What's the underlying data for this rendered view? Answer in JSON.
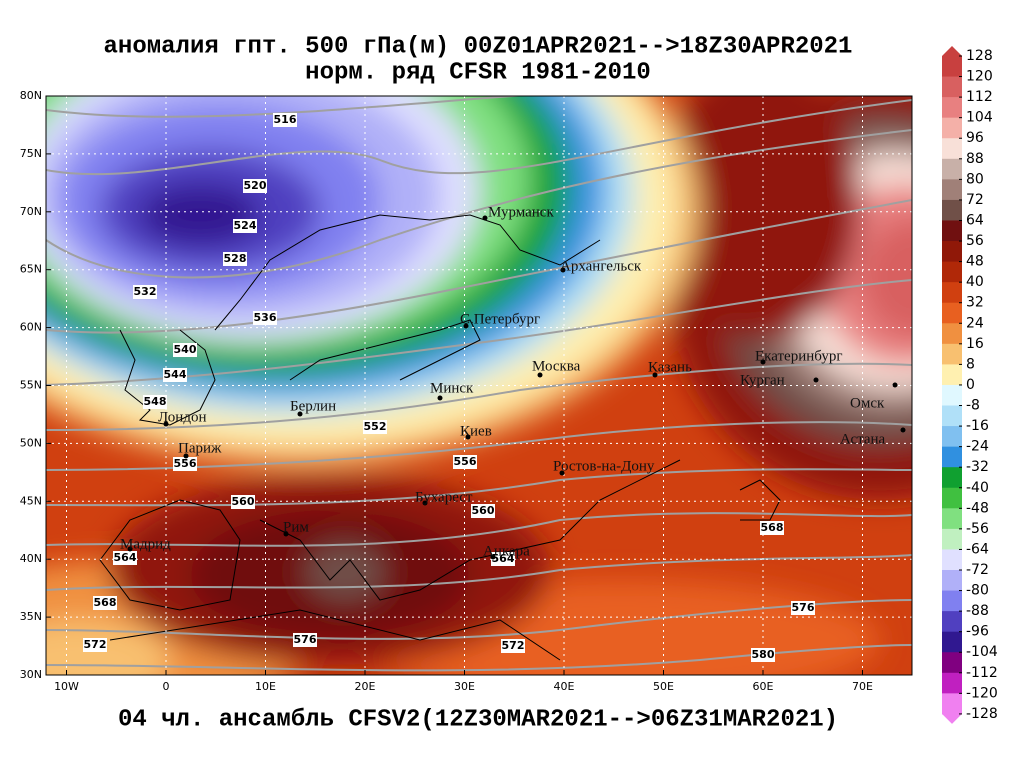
{
  "title": {
    "line1": "аномалия гпт. 500 гПа(м) 00Z01APR2021-->18Z30APR2021",
    "line2": "норм. ряд CFSR 1981-2010"
  },
  "footer": "04 чл. ансамбль CFSV2(12Z30MAR2021-->06Z31MAR2021)",
  "axes": {
    "lat": [
      {
        "value": 80,
        "label": "80N"
      },
      {
        "value": 75,
        "label": "75N"
      },
      {
        "value": 70,
        "label": "70N"
      },
      {
        "value": 65,
        "label": "65N"
      },
      {
        "value": 60,
        "label": "60N"
      },
      {
        "value": 55,
        "label": "55N"
      },
      {
        "value": 50,
        "label": "50N"
      },
      {
        "value": 45,
        "label": "45N"
      },
      {
        "value": 40,
        "label": "40N"
      },
      {
        "value": 35,
        "label": "35N"
      },
      {
        "value": 30,
        "label": "30N"
      }
    ],
    "lon": [
      {
        "value": -10,
        "label": "10W"
      },
      0,
      {
        "value": 10,
        "label": "10E"
      },
      {
        "value": 20,
        "label": "20E"
      },
      {
        "value": 30,
        "label": "30E"
      },
      {
        "value": 40,
        "label": "40E"
      },
      {
        "value": 50,
        "label": "50E"
      },
      {
        "value": 60,
        "label": "60E"
      },
      {
        "value": 70,
        "label": "70E"
      }
    ]
  },
  "colorbar": {
    "levels": [
      128,
      120,
      112,
      104,
      96,
      88,
      80,
      72,
      64,
      56,
      48,
      40,
      32,
      24,
      16,
      8,
      0,
      -8,
      -16,
      -24,
      -32,
      -40,
      -48,
      -56,
      -64,
      -72,
      -80,
      -88,
      -96,
      -104,
      -112,
      -120,
      -128
    ],
    "colors": [
      "#c8403f",
      "#d86060",
      "#e88080",
      "#f4b0a8",
      "#f8e0d8",
      "#c8b0a8",
      "#a08078",
      "#705048",
      "#701010",
      "#901808",
      "#b02808",
      "#d04010",
      "#e86020",
      "#f09040",
      "#f8c070",
      "#fff0b0",
      "#e0f8ff",
      "#b0e0f8",
      "#80c0f0",
      "#3090e0",
      "#10a030",
      "#40c040",
      "#80e080",
      "#c0f0c0",
      "#e0e0ff",
      "#b0b0f8",
      "#8080f0",
      "#5040c0",
      "#301890",
      "#800080",
      "#c020c0",
      "#f080f0"
    ]
  },
  "contours": [
    516,
    520,
    524,
    528,
    532,
    536,
    540,
    544,
    548,
    552,
    556,
    556,
    560,
    560,
    564,
    564,
    568,
    568,
    572,
    572,
    576,
    576,
    580
  ],
  "cities": [
    "Мурманск",
    "Архангельск",
    "С.Петербург",
    "Москва",
    "Казань",
    "Екатеринбург",
    "Курган",
    "Омск",
    "Астана",
    "Минск",
    "Берлин",
    "Лондон",
    "Париж",
    "Киев",
    "Ростов-на-Дону",
    "Бухарест",
    "Рим",
    "Мадрид",
    "Анкара"
  ]
}
